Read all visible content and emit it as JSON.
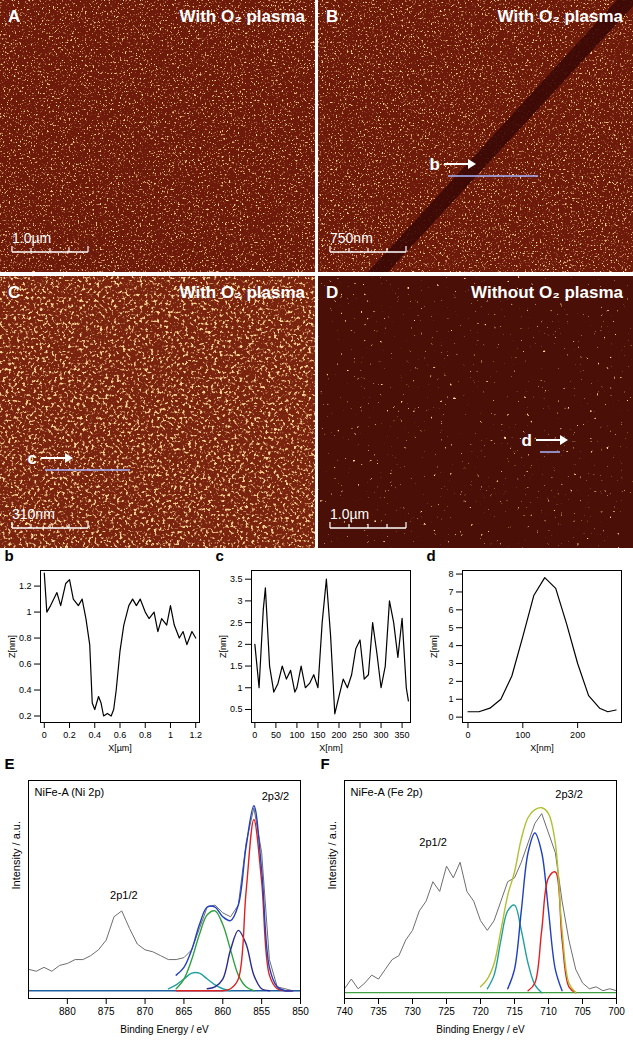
{
  "images": [
    {
      "label": "A",
      "title": "With O₂ plasma",
      "scale_bar": "1.0µm"
    },
    {
      "label": "B",
      "title": "With O₂ plasma",
      "scale_bar": "750nm",
      "line_label": "b"
    },
    {
      "label": "C",
      "title": "With O₂ plasma",
      "scale_bar": "310nm",
      "line_label": "c"
    },
    {
      "label": "D",
      "title": "Without O₂ plasma",
      "scale_bar": "1.0µm",
      "line_label": "d"
    }
  ],
  "chart_data": [
    {
      "type": "line",
      "panel": "b",
      "xlabel": "X[µm]",
      "ylabel": "Z[nm]",
      "color": "#000000",
      "x": [
        0,
        0.02,
        0.05,
        0.1,
        0.13,
        0.17,
        0.2,
        0.23,
        0.27,
        0.3,
        0.33,
        0.36,
        0.38,
        0.4,
        0.43,
        0.45,
        0.47,
        0.5,
        0.53,
        0.55,
        0.57,
        0.6,
        0.63,
        0.67,
        0.7,
        0.73,
        0.76,
        0.8,
        0.83,
        0.87,
        0.9,
        0.93,
        0.97,
        1.0,
        1.03,
        1.07,
        1.1,
        1.13,
        1.17,
        1.2
      ],
      "values": [
        1.3,
        1.0,
        1.05,
        1.15,
        1.05,
        1.22,
        1.25,
        1.1,
        1.05,
        1.1,
        0.95,
        0.75,
        0.3,
        0.25,
        0.35,
        0.3,
        0.2,
        0.22,
        0.2,
        0.25,
        0.4,
        0.7,
        0.9,
        1.05,
        1.1,
        1.05,
        1.1,
        1.0,
        0.95,
        1.0,
        0.85,
        0.95,
        0.9,
        1.05,
        0.9,
        0.8,
        0.85,
        0.75,
        0.85,
        0.8
      ],
      "xlim": [
        -0.03,
        1.23
      ],
      "ylim": [
        0.15,
        1.32
      ],
      "xticks": [
        0,
        0.2,
        0.4,
        0.6,
        0.8,
        1,
        1.2
      ],
      "yticks": [
        0.2,
        0.4,
        0.6,
        0.8,
        1,
        1.2
      ]
    },
    {
      "type": "line",
      "panel": "c",
      "xlabel": "X[nm]",
      "ylabel": "Z[nm]",
      "color": "#000000",
      "x": [
        0,
        10,
        20,
        25,
        35,
        45,
        55,
        65,
        75,
        85,
        95,
        100,
        110,
        120,
        130,
        140,
        150,
        160,
        170,
        180,
        190,
        200,
        210,
        220,
        230,
        240,
        250,
        260,
        270,
        280,
        290,
        300,
        310,
        320,
        330,
        340,
        350,
        360,
        365
      ],
      "values": [
        2.0,
        1.0,
        2.8,
        3.3,
        1.5,
        0.9,
        1.1,
        1.5,
        1.2,
        1.4,
        0.9,
        1.0,
        1.5,
        1.0,
        1.1,
        1.3,
        1.0,
        2.5,
        3.5,
        2.2,
        0.4,
        0.8,
        1.2,
        1.0,
        1.3,
        1.9,
        2.1,
        1.2,
        1.3,
        2.5,
        1.8,
        1.0,
        1.5,
        3.0,
        2.5,
        1.7,
        2.6,
        1.0,
        0.7
      ],
      "xlim": [
        -8,
        370
      ],
      "ylim": [
        0.2,
        3.7
      ],
      "xticks": [
        0,
        50,
        100,
        150,
        200,
        250,
        300,
        350
      ],
      "yticks": [
        0.5,
        1,
        1.5,
        2,
        2.5,
        3,
        3.5
      ]
    },
    {
      "type": "line",
      "panel": "d",
      "xlabel": "X[nm]",
      "ylabel": "Z[nm]",
      "color": "#000000",
      "x": [
        0,
        20,
        40,
        60,
        80,
        100,
        120,
        140,
        160,
        180,
        200,
        220,
        240,
        255,
        270
      ],
      "values": [
        0.3,
        0.3,
        0.5,
        1.0,
        2.3,
        4.5,
        6.8,
        7.8,
        7.2,
        5.2,
        3.0,
        1.2,
        0.5,
        0.3,
        0.4
      ],
      "xlim": [
        -10,
        280
      ],
      "ylim": [
        -0.3,
        8.2
      ],
      "xticks": [
        0,
        100,
        200
      ],
      "yticks": [
        0,
        1,
        2,
        3,
        4,
        5,
        6,
        7,
        8
      ]
    },
    {
      "type": "line",
      "panel": "E",
      "title": "NiFe-A (Ni 2p)",
      "xlabel": "Binding Energy / eV",
      "ylabel": "Intensity / a.u.",
      "tick_labels": "x",
      "xlim": [
        885,
        850
      ],
      "ylim": [
        0,
        1.12
      ],
      "xticks": [
        880,
        875,
        870,
        865,
        860,
        855,
        850
      ],
      "annotations": [
        {
          "text": "2p3/2",
          "x": 855,
          "y": 1.04
        },
        {
          "text": "2p1/2",
          "x": 874.5,
          "y": 0.53
        }
      ],
      "series": [
        {
          "color": "#6e6e6e",
          "x": [
            885,
            884,
            883,
            882,
            881,
            880,
            879,
            878,
            877,
            876,
            875,
            874,
            873,
            872,
            871,
            870,
            869,
            868,
            867,
            866,
            865,
            864,
            863,
            862,
            861,
            860,
            859,
            858,
            857,
            856,
            855,
            854,
            853,
            852,
            851,
            850
          ],
          "values": [
            0.15,
            0.14,
            0.16,
            0.14,
            0.17,
            0.18,
            0.2,
            0.2,
            0.22,
            0.25,
            0.3,
            0.42,
            0.45,
            0.36,
            0.28,
            0.25,
            0.24,
            0.22,
            0.2,
            0.2,
            0.21,
            0.25,
            0.36,
            0.47,
            0.48,
            0.44,
            0.42,
            0.48,
            0.8,
            0.98,
            0.75,
            0.2,
            0.06,
            0.05,
            0.04,
            0.04
          ]
        },
        {
          "color": "#2060a0",
          "x": [
            885,
            850
          ],
          "values": [
            0.04,
            0.04
          ]
        },
        {
          "color": "#20a0a0",
          "x": [
            867,
            866,
            865,
            864,
            863,
            862,
            861,
            860,
            859
          ],
          "values": [
            0.05,
            0.07,
            0.1,
            0.13,
            0.13,
            0.1,
            0.07,
            0.05,
            0.04
          ]
        },
        {
          "color": "#30a040",
          "x": [
            866,
            865,
            864,
            863,
            862,
            861,
            860,
            859,
            858,
            857,
            856
          ],
          "values": [
            0.05,
            0.1,
            0.2,
            0.33,
            0.43,
            0.45,
            0.38,
            0.25,
            0.12,
            0.06,
            0.04
          ]
        },
        {
          "color": "#2a2a90",
          "x": [
            862,
            861,
            860,
            859,
            858,
            857,
            856,
            855,
            854
          ],
          "values": [
            0.05,
            0.06,
            0.1,
            0.25,
            0.35,
            0.28,
            0.12,
            0.05,
            0.04
          ]
        },
        {
          "color": "#e02020",
          "x": [
            866,
            865,
            864,
            863,
            862,
            861,
            860,
            859,
            858,
            857,
            856,
            855,
            854,
            853,
            852,
            851
          ],
          "values": [
            0.04,
            0.04,
            0.04,
            0.04,
            0.04,
            0.04,
            0.04,
            0.05,
            0.1,
            0.55,
            0.92,
            0.6,
            0.12,
            0.05,
            0.04,
            0.04
          ]
        },
        {
          "color": "#2040c0",
          "x": [
            866,
            865,
            864,
            863,
            862,
            861,
            860,
            859,
            858,
            857,
            856,
            855,
            854,
            853,
            852,
            851
          ],
          "values": [
            0.12,
            0.16,
            0.25,
            0.38,
            0.47,
            0.47,
            0.42,
            0.4,
            0.48,
            0.78,
            0.99,
            0.66,
            0.16,
            0.06,
            0.04,
            0.04
          ]
        }
      ]
    },
    {
      "type": "line",
      "panel": "F",
      "title": "NiFe-A (Fe 2p)",
      "xlabel": "Binding Energy / eV",
      "ylabel": "Intensity / a.u.",
      "tick_labels": "x",
      "xlim": [
        740,
        700
      ],
      "ylim": [
        0,
        1.12
      ],
      "xticks": [
        740,
        735,
        730,
        725,
        720,
        715,
        710,
        705,
        700
      ],
      "annotations": [
        {
          "text": "2p3/2",
          "x": 709,
          "y": 1.05
        },
        {
          "text": "2p1/2",
          "x": 729,
          "y": 0.8
        }
      ],
      "series": [
        {
          "color": "#6e6e6e",
          "x": [
            740,
            739,
            738,
            737,
            736,
            735,
            734,
            733,
            732,
            731,
            730,
            729,
            728,
            727,
            726,
            725,
            724,
            723,
            722,
            721,
            720,
            719,
            718,
            717,
            716,
            715,
            714,
            713,
            712,
            711,
            710,
            709,
            708,
            707,
            706,
            705,
            704,
            703,
            702,
            701,
            700
          ],
          "values": [
            0.05,
            0.1,
            0.05,
            0.08,
            0.12,
            0.1,
            0.15,
            0.2,
            0.22,
            0.3,
            0.35,
            0.45,
            0.5,
            0.6,
            0.55,
            0.68,
            0.62,
            0.7,
            0.55,
            0.5,
            0.4,
            0.35,
            0.4,
            0.5,
            0.6,
            0.62,
            0.7,
            0.8,
            0.9,
            0.95,
            0.85,
            0.75,
            0.5,
            0.3,
            0.15,
            0.08,
            0.05,
            0.06,
            0.04,
            0.05,
            0.04
          ]
        },
        {
          "color": "#40a040",
          "x": [
            740,
            700
          ],
          "values": [
            0.03,
            0.03
          ]
        },
        {
          "color": "#20a0a0",
          "x": [
            719,
            718,
            717,
            716,
            715,
            714,
            713,
            712,
            711
          ],
          "values": [
            0.05,
            0.12,
            0.3,
            0.45,
            0.48,
            0.35,
            0.18,
            0.07,
            0.03
          ]
        },
        {
          "color": "#2040c0",
          "x": [
            716,
            715,
            714,
            713,
            712,
            711,
            710,
            709,
            708
          ],
          "values": [
            0.05,
            0.15,
            0.45,
            0.75,
            0.85,
            0.75,
            0.45,
            0.15,
            0.04
          ]
        },
        {
          "color": "#e02020",
          "x": [
            713,
            712,
            711,
            710,
            709,
            708,
            707,
            706
          ],
          "values": [
            0.04,
            0.08,
            0.35,
            0.62,
            0.65,
            0.3,
            0.06,
            0.03
          ]
        },
        {
          "color": "#b0c030",
          "x": [
            720,
            719,
            718,
            717,
            716,
            715,
            714,
            713,
            712,
            711,
            710,
            709,
            708,
            707,
            706
          ],
          "values": [
            0.06,
            0.1,
            0.18,
            0.35,
            0.53,
            0.65,
            0.82,
            0.93,
            0.97,
            0.98,
            0.95,
            0.8,
            0.35,
            0.08,
            0.03
          ]
        }
      ]
    }
  ]
}
